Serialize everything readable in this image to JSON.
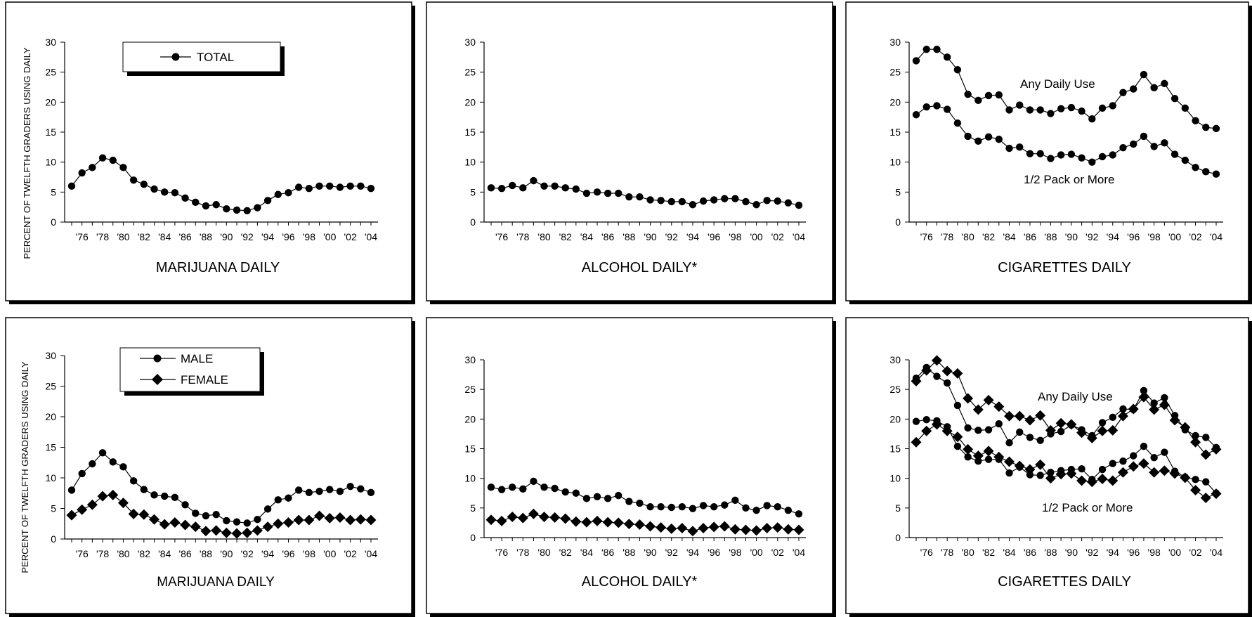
{
  "ylabel": "PERCENT OF TWELFTH GRADERS USING DAILY",
  "ylim": [
    0,
    30
  ],
  "yticks": [
    "0",
    "5",
    "10",
    "15",
    "20",
    "25",
    "30"
  ],
  "xtick_labels": [
    "'76",
    "'78",
    "'80",
    "'82",
    "'84",
    "'86",
    "'88",
    "'90",
    "'92",
    "'94",
    "'96",
    "'98",
    "'00",
    "'02",
    "'04"
  ],
  "chart_data": [
    {
      "type": "line",
      "title": "MARIJUANA DAILY",
      "x": [
        1975,
        1976,
        1977,
        1978,
        1979,
        1980,
        1981,
        1982,
        1983,
        1984,
        1985,
        1986,
        1987,
        1988,
        1989,
        1990,
        1991,
        1992,
        1993,
        1994,
        1995,
        1996,
        1997,
        1998,
        1999,
        2000,
        2001,
        2002,
        2003,
        2004
      ],
      "ylim": [
        0,
        30
      ],
      "series": [
        {
          "name": "TOTAL",
          "marker": "circle",
          "values": [
            6.0,
            8.2,
            9.1,
            10.7,
            10.3,
            9.1,
            7.0,
            6.3,
            5.5,
            5.0,
            4.9,
            4.0,
            3.3,
            2.7,
            2.9,
            2.2,
            2.0,
            1.9,
            2.4,
            3.6,
            4.6,
            4.9,
            5.8,
            5.6,
            6.0,
            6.0,
            5.8,
            6.0,
            6.0,
            5.6
          ]
        }
      ],
      "legend_position": "top-left",
      "ylabel": "PERCENT OF TWELFTH GRADERS USING DAILY"
    },
    {
      "type": "line",
      "title": "ALCOHOL DAILY*",
      "x": [
        1975,
        1976,
        1977,
        1978,
        1979,
        1980,
        1981,
        1982,
        1983,
        1984,
        1985,
        1986,
        1987,
        1988,
        1989,
        1990,
        1991,
        1992,
        1993,
        1994,
        1995,
        1996,
        1997,
        1998,
        1999,
        2000,
        2001,
        2002,
        2003,
        2004
      ],
      "ylim": [
        0,
        30
      ],
      "series": [
        {
          "marker": "circle",
          "values": [
            5.7,
            5.6,
            6.1,
            5.7,
            6.9,
            6.0,
            6.0,
            5.7,
            5.5,
            4.8,
            5.0,
            4.8,
            4.8,
            4.2,
            4.2,
            3.7,
            3.6,
            3.4,
            3.4,
            2.9,
            3.5,
            3.7,
            3.9,
            3.9,
            3.4,
            2.9,
            3.6,
            3.5,
            3.2,
            2.8
          ]
        }
      ]
    },
    {
      "type": "line",
      "title": "CIGARETTES DAILY",
      "x": [
        1975,
        1976,
        1977,
        1978,
        1979,
        1980,
        1981,
        1982,
        1983,
        1984,
        1985,
        1986,
        1987,
        1988,
        1989,
        1990,
        1991,
        1992,
        1993,
        1994,
        1995,
        1996,
        1997,
        1998,
        1999,
        2000,
        2001,
        2002,
        2003,
        2004
      ],
      "ylim": [
        0,
        30
      ],
      "series": [
        {
          "name": "Any Daily Use",
          "marker": "circle",
          "values": [
            26.9,
            28.8,
            28.8,
            27.5,
            25.4,
            21.3,
            20.3,
            21.1,
            21.2,
            18.7,
            19.5,
            18.7,
            18.7,
            18.1,
            18.9,
            19.1,
            18.5,
            17.2,
            19.0,
            19.4,
            21.6,
            22.2,
            24.6,
            22.4,
            23.1,
            20.6,
            19.0,
            16.9,
            15.8,
            15.6
          ]
        },
        {
          "name": "1/2 Pack or More",
          "marker": "circle",
          "values": [
            17.9,
            19.2,
            19.4,
            18.8,
            16.5,
            14.3,
            13.5,
            14.2,
            13.8,
            12.3,
            12.5,
            11.4,
            11.4,
            10.6,
            11.2,
            11.3,
            10.7,
            10.0,
            10.9,
            11.2,
            12.4,
            13.0,
            14.3,
            12.6,
            13.2,
            11.3,
            10.3,
            9.1,
            8.4,
            8.0
          ]
        }
      ],
      "annotations": [
        "Any Daily Use",
        "1/2 Pack or More"
      ]
    },
    {
      "type": "line",
      "title": "MARIJUANA DAILY",
      "x": [
        1975,
        1976,
        1977,
        1978,
        1979,
        1980,
        1981,
        1982,
        1983,
        1984,
        1985,
        1986,
        1987,
        1988,
        1989,
        1990,
        1991,
        1992,
        1993,
        1994,
        1995,
        1996,
        1997,
        1998,
        1999,
        2000,
        2001,
        2002,
        2003,
        2004
      ],
      "ylim": [
        0,
        30
      ],
      "series": [
        {
          "name": "MALE",
          "marker": "circle",
          "values": [
            8.0,
            10.7,
            12.3,
            14.1,
            12.6,
            11.8,
            9.5,
            8.1,
            7.2,
            7.0,
            6.8,
            5.6,
            4.2,
            3.8,
            4.0,
            3.0,
            2.8,
            2.6,
            3.2,
            4.9,
            6.4,
            6.7,
            8.0,
            7.6,
            7.8,
            8.1,
            7.8,
            8.6,
            8.2,
            7.6
          ]
        },
        {
          "name": "FEMALE",
          "marker": "diamond",
          "values": [
            3.9,
            4.8,
            5.6,
            7.0,
            7.2,
            5.9,
            4.1,
            4.0,
            3.2,
            2.4,
            2.7,
            2.3,
            2.0,
            1.3,
            1.4,
            1.0,
            0.9,
            1.0,
            1.4,
            2.0,
            2.5,
            2.7,
            3.1,
            3.1,
            3.8,
            3.4,
            3.5,
            3.1,
            3.2,
            3.1
          ]
        }
      ],
      "legend_position": "top-left",
      "ylabel": "PERCENT OF TWELFTH GRADERS USING DAILY"
    },
    {
      "type": "line",
      "title": "ALCOHOL DAILY*",
      "x": [
        1975,
        1976,
        1977,
        1978,
        1979,
        1980,
        1981,
        1982,
        1983,
        1984,
        1985,
        1986,
        1987,
        1988,
        1989,
        1990,
        1991,
        1992,
        1993,
        1994,
        1995,
        1996,
        1997,
        1998,
        1999,
        2000,
        2001,
        2002,
        2003,
        2004
      ],
      "ylim": [
        0,
        30
      ],
      "series": [
        {
          "name": "MALE",
          "marker": "circle",
          "values": [
            8.5,
            8.1,
            8.5,
            8.2,
            9.5,
            8.5,
            8.3,
            7.7,
            7.5,
            6.6,
            6.9,
            6.6,
            7.1,
            6.1,
            5.8,
            5.2,
            5.2,
            5.1,
            5.2,
            4.9,
            5.4,
            5.2,
            5.5,
            6.3,
            5.0,
            4.6,
            5.4,
            5.2,
            4.6,
            4.0
          ]
        },
        {
          "name": "FEMALE",
          "marker": "diamond",
          "values": [
            3.0,
            2.8,
            3.5,
            3.3,
            4.0,
            3.5,
            3.4,
            3.2,
            2.7,
            2.6,
            2.8,
            2.6,
            2.5,
            2.3,
            2.2,
            1.9,
            1.7,
            1.5,
            1.6,
            1.1,
            1.6,
            1.8,
            1.9,
            1.4,
            1.3,
            1.2,
            1.6,
            1.7,
            1.4,
            1.3
          ]
        }
      ]
    },
    {
      "type": "line",
      "title": "CIGARETTES DAILY",
      "x": [
        1975,
        1976,
        1977,
        1978,
        1979,
        1980,
        1981,
        1982,
        1983,
        1984,
        1985,
        1986,
        1987,
        1988,
        1989,
        1990,
        1991,
        1992,
        1993,
        1994,
        1995,
        1996,
        1997,
        1998,
        1999,
        2000,
        2001,
        2002,
        2003,
        2004
      ],
      "ylim": [
        0,
        30
      ],
      "series": [
        {
          "name": "MALE Any Daily Use",
          "marker": "circle",
          "values": [
            26.9,
            28.7,
            27.2,
            26.1,
            22.3,
            18.5,
            18.1,
            18.2,
            19.2,
            16.0,
            17.8,
            16.9,
            16.4,
            17.5,
            17.9,
            19.0,
            18.2,
            17.2,
            19.4,
            20.3,
            21.7,
            21.6,
            24.8,
            22.7,
            23.6,
            20.6,
            18.2,
            17.2,
            16.9,
            15.2
          ]
        },
        {
          "name": "FEMALE Any Daily Use",
          "marker": "diamond",
          "values": [
            26.4,
            28.2,
            29.9,
            28.1,
            27.7,
            23.5,
            21.6,
            23.2,
            22.1,
            20.5,
            20.5,
            19.8,
            20.6,
            18.1,
            19.3,
            19.1,
            17.7,
            16.8,
            18.0,
            18.1,
            20.5,
            21.7,
            23.7,
            21.6,
            22.4,
            19.8,
            18.6,
            16.1,
            14.0,
            14.9
          ]
        },
        {
          "name": "MALE 1/2 Pack or More",
          "marker": "circle",
          "values": [
            19.6,
            19.9,
            19.7,
            18.7,
            15.4,
            13.6,
            12.9,
            13.2,
            13.2,
            10.9,
            11.9,
            10.6,
            10.5,
            11.0,
            11.3,
            11.5,
            11.6,
            9.8,
            11.5,
            12.5,
            12.9,
            13.8,
            15.4,
            13.5,
            14.4,
            11.2,
            10.2,
            9.8,
            9.4,
            7.5
          ]
        },
        {
          "name": "FEMALE 1/2 Pack or More",
          "marker": "diamond",
          "values": [
            16.1,
            18.0,
            19.1,
            18.0,
            17.0,
            14.9,
            13.8,
            14.6,
            13.6,
            12.8,
            12.1,
            11.5,
            12.3,
            10.0,
            10.7,
            10.8,
            9.6,
            9.4,
            9.9,
            9.6,
            11.0,
            12.0,
            12.5,
            11.0,
            11.3,
            10.8,
            10.1,
            8.0,
            6.7,
            7.4
          ]
        }
      ],
      "annotations": [
        "Any Daily Use",
        "1/2 Pack or More"
      ]
    }
  ],
  "panels": [
    {
      "title": "MARIJUANA DAILY",
      "legend": [
        "TOTAL"
      ]
    },
    {
      "title": "ALCOHOL DAILY*"
    },
    {
      "title": "CIGARETTES DAILY",
      "annot_top": "Any Daily Use",
      "annot_bottom": "1/2 Pack or More"
    },
    {
      "title": "MARIJUANA DAILY",
      "legend": [
        "MALE",
        "FEMALE"
      ]
    },
    {
      "title": "ALCOHOL DAILY*"
    },
    {
      "title": "CIGARETTES DAILY",
      "annot_top": "Any Daily Use",
      "annot_bottom": "1/2 Pack or More"
    }
  ]
}
